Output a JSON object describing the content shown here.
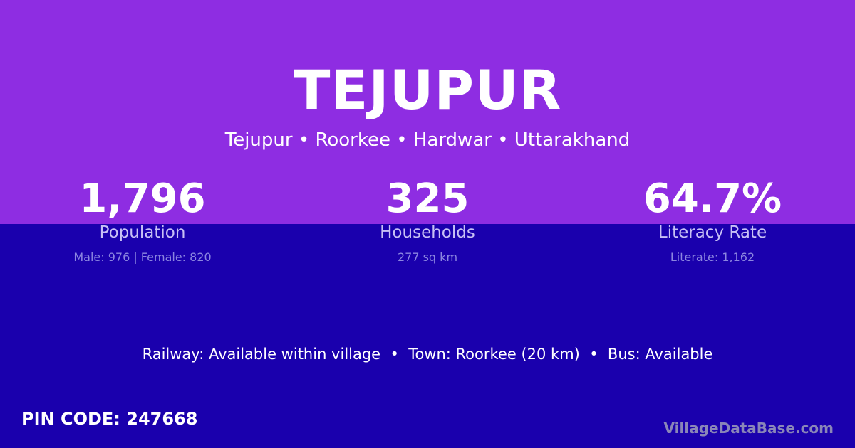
{
  "title": "TEJUPUR",
  "subtitle": "Tejupur • Roorkee • Hardwar • Uttarakhand",
  "stats": [
    {
      "value": "1,796",
      "label": "Population",
      "detail": "Male: 976 | Female: 820"
    },
    {
      "value": "325",
      "label": "Households",
      "detail": "277 sq km"
    },
    {
      "value": "64.7%",
      "label": "Literacy Rate",
      "detail": "Literate: 1,162"
    }
  ],
  "info": "Railway: Available within village  •  Town: Roorkee (20 km)  •  Bus: Available",
  "pin": "PIN CODE: 247668",
  "brand": "VillageDataBase.com",
  "colors": {
    "top": "#8e2de2",
    "bottom": "#1a00ad"
  }
}
